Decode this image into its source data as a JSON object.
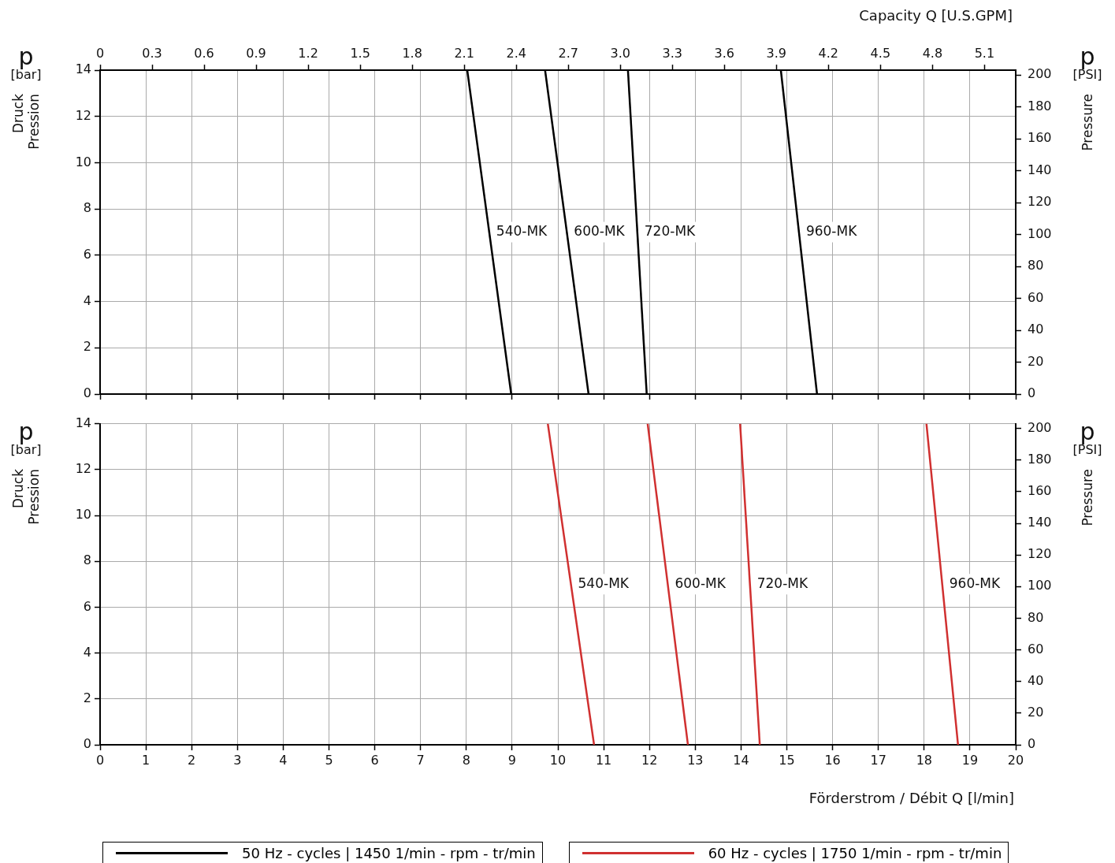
{
  "chart_data": [
    {
      "type": "line",
      "x2label": "Capacity Q [U.S.GPM]",
      "ylabel": "p [bar] Druck Pression",
      "y2label": "p [PSI] Pressure",
      "legend_title": "50 Hz - cycles | 1450 1/min - rpm - tr/min",
      "grid": true,
      "marker": "none",
      "line_style": "solid",
      "tick_labels": "y",
      "xlim": [
        0,
        20
      ],
      "xticks": [
        0,
        1,
        2,
        3,
        4,
        5,
        6,
        7,
        8,
        9,
        10,
        11,
        12,
        13,
        14,
        15,
        16,
        17,
        18,
        19,
        20
      ],
      "x2lim": [
        0,
        5.28
      ],
      "x2ticks": [
        0,
        0.3,
        0.6,
        0.9,
        1.2,
        1.5,
        1.8,
        2.1,
        2.4,
        2.7,
        {
          "value": 3.0,
          "label": "3.0"
        },
        3.3,
        3.6,
        3.9,
        4.2,
        4.5,
        4.8,
        5.1
      ],
      "ylim": [
        0,
        14
      ],
      "yticks": [
        0,
        2,
        4,
        6,
        8,
        10,
        12,
        14
      ],
      "y2lim": [
        0,
        203
      ],
      "y2ticks": [
        0,
        20,
        40,
        60,
        80,
        100,
        120,
        140,
        160,
        180,
        200
      ],
      "series": [
        {
          "name": "540-MK",
          "color": "#000000",
          "x": [
            8.02,
            8.98
          ],
          "values": [
            14,
            0
          ]
        },
        {
          "name": "600-MK",
          "color": "#000000",
          "x": [
            9.72,
            10.67
          ],
          "values": [
            14,
            0
          ]
        },
        {
          "name": "720-MK",
          "color": "#000000",
          "x": [
            11.53,
            11.94
          ],
          "values": [
            14,
            0
          ]
        },
        {
          "name": "960-MK",
          "color": "#000000",
          "x": [
            14.87,
            15.66
          ],
          "values": [
            14,
            0
          ]
        }
      ]
    },
    {
      "type": "line",
      "xlabel": "Förderstrom / Débit Q [l/min]",
      "ylabel": "p [bar] Druck Pression",
      "y2label": "p [PSI] Pressure",
      "legend_title": "60 Hz - cycles | 1750 1/min - rpm - tr/min",
      "grid": true,
      "marker": "none",
      "line_style": "solid",
      "xlim": [
        0,
        20
      ],
      "xticks": [
        0,
        1,
        2,
        3,
        4,
        5,
        6,
        7,
        8,
        9,
        10,
        11,
        12,
        13,
        14,
        15,
        16,
        17,
        18,
        19,
        20
      ],
      "ylim": [
        0,
        14
      ],
      "yticks": [
        0,
        2,
        4,
        6,
        8,
        10,
        12,
        14
      ],
      "y2lim": [
        0,
        203
      ],
      "y2ticks": [
        0,
        20,
        40,
        60,
        80,
        100,
        120,
        140,
        160,
        180,
        200
      ],
      "series": [
        {
          "name": "540-MK",
          "color": "#d03030",
          "x": [
            9.78,
            10.79
          ],
          "values": [
            14,
            0
          ]
        },
        {
          "name": "600-MK",
          "color": "#d03030",
          "x": [
            11.96,
            12.84
          ],
          "values": [
            14,
            0
          ]
        },
        {
          "name": "720-MK",
          "color": "#d03030",
          "x": [
            13.98,
            14.41
          ],
          "values": [
            14,
            0
          ]
        },
        {
          "name": "960-MK",
          "color": "#d03030",
          "x": [
            18.05,
            18.74
          ],
          "values": [
            14,
            0
          ]
        }
      ]
    }
  ]
}
